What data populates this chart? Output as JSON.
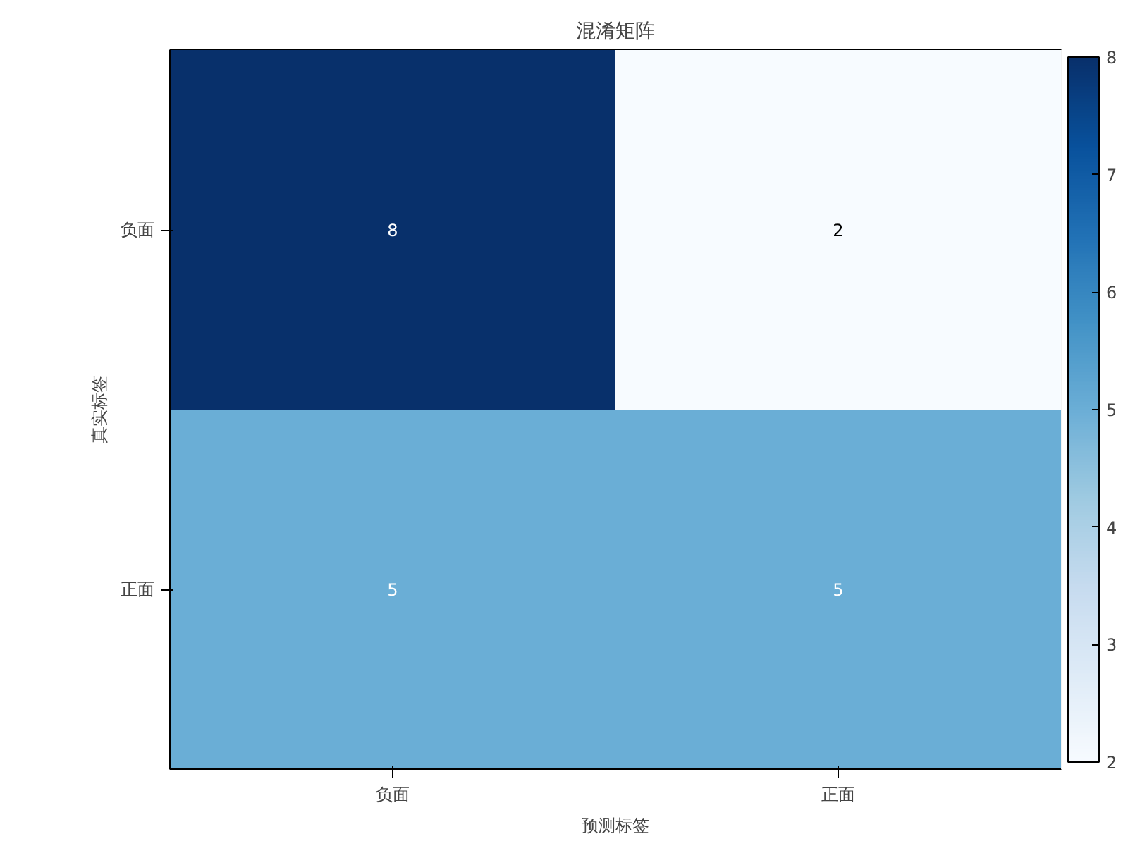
{
  "chart_data": {
    "type": "heatmap",
    "title": "混淆矩阵",
    "xlabel": "预测标签",
    "ylabel": "真实标签",
    "categories": [
      "负面",
      "正面"
    ],
    "y_categories": [
      "负面",
      "正面"
    ],
    "cells": [
      [
        8,
        2
      ],
      [
        5,
        5
      ]
    ],
    "clim": [
      2,
      8
    ],
    "cticks": [
      2,
      3,
      4,
      5,
      6,
      7,
      8
    ],
    "data_labels": true
  }
}
